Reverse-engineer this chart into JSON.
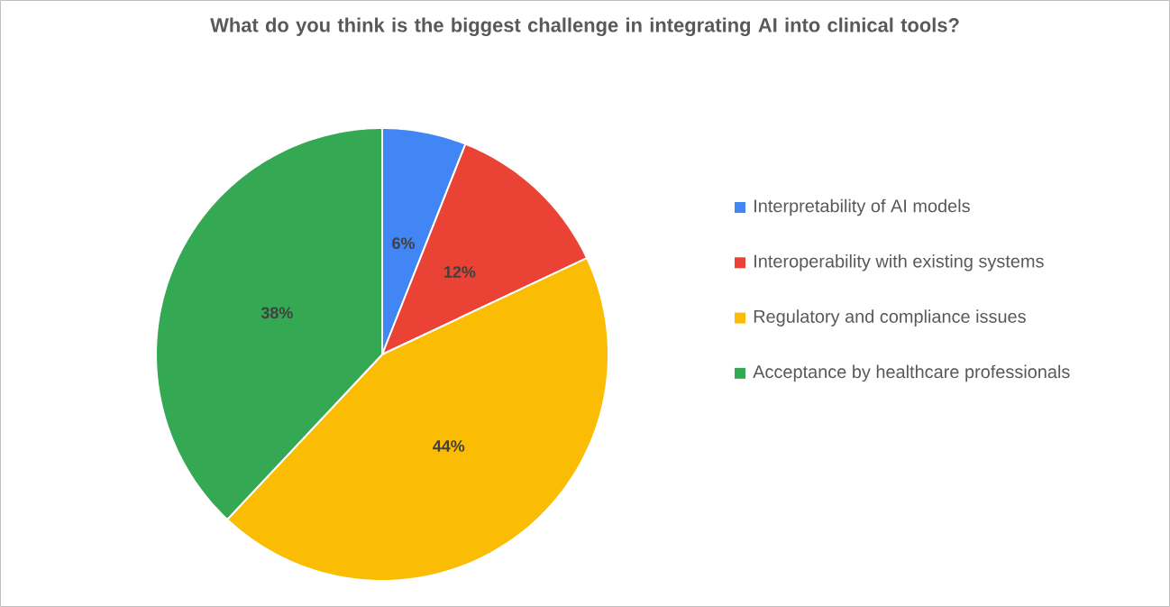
{
  "chart_data": {
    "type": "pie",
    "title": "What do you think is the biggest challenge in integrating AI into clinical tools?",
    "categories": [
      "Interpretability of AI models",
      "Interoperability with existing systems",
      "Regulatory and compliance issues",
      "Acceptance by healthcare professionals"
    ],
    "values": [
      6,
      12,
      44,
      38
    ],
    "colors": [
      "#4285f4",
      "#ea4335",
      "#fbbc04",
      "#34a853"
    ],
    "value_labels": [
      "6%",
      "12%",
      "44%",
      "38%"
    ],
    "legend": "right"
  }
}
